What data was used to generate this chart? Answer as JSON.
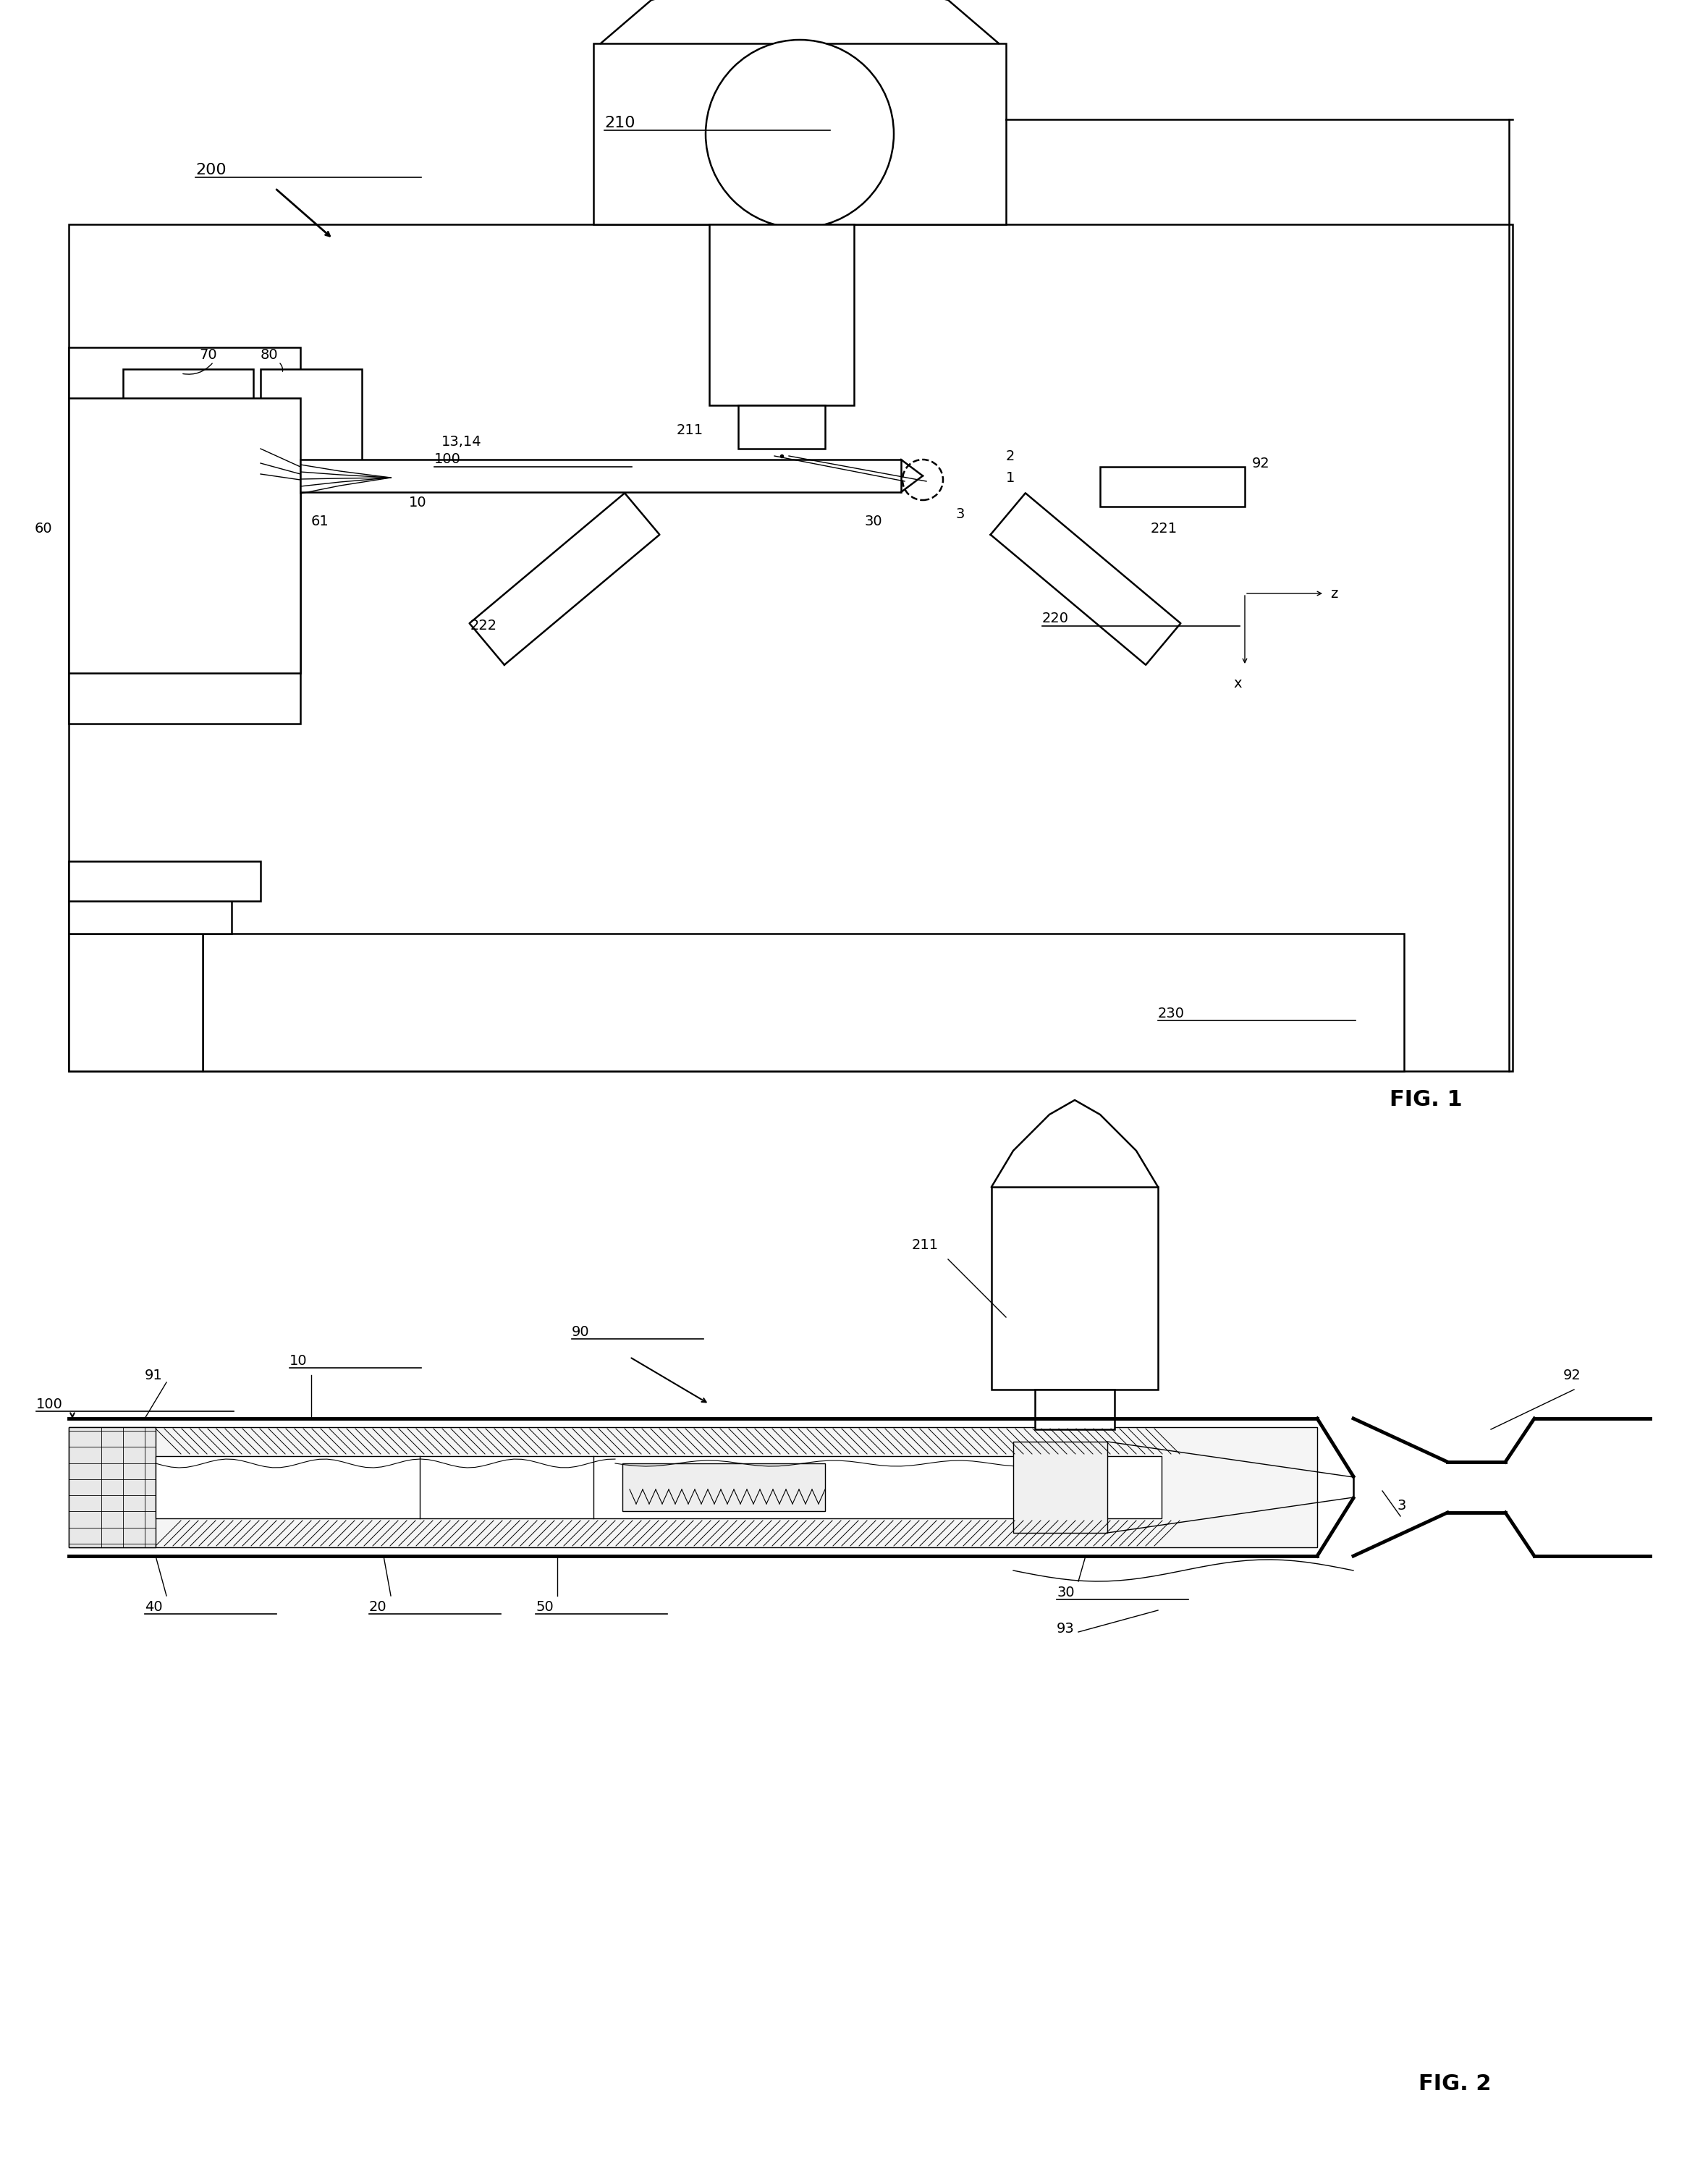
{
  "fig_width": 23.6,
  "fig_height": 29.97,
  "bg_color": "#ffffff",
  "line_color": "#000000",
  "lw_thin": 1.0,
  "lw_med": 1.8,
  "lw_thick": 3.5,
  "font_size": 14,
  "fig1_label": "FIG. 1",
  "fig2_label": "FIG. 2"
}
